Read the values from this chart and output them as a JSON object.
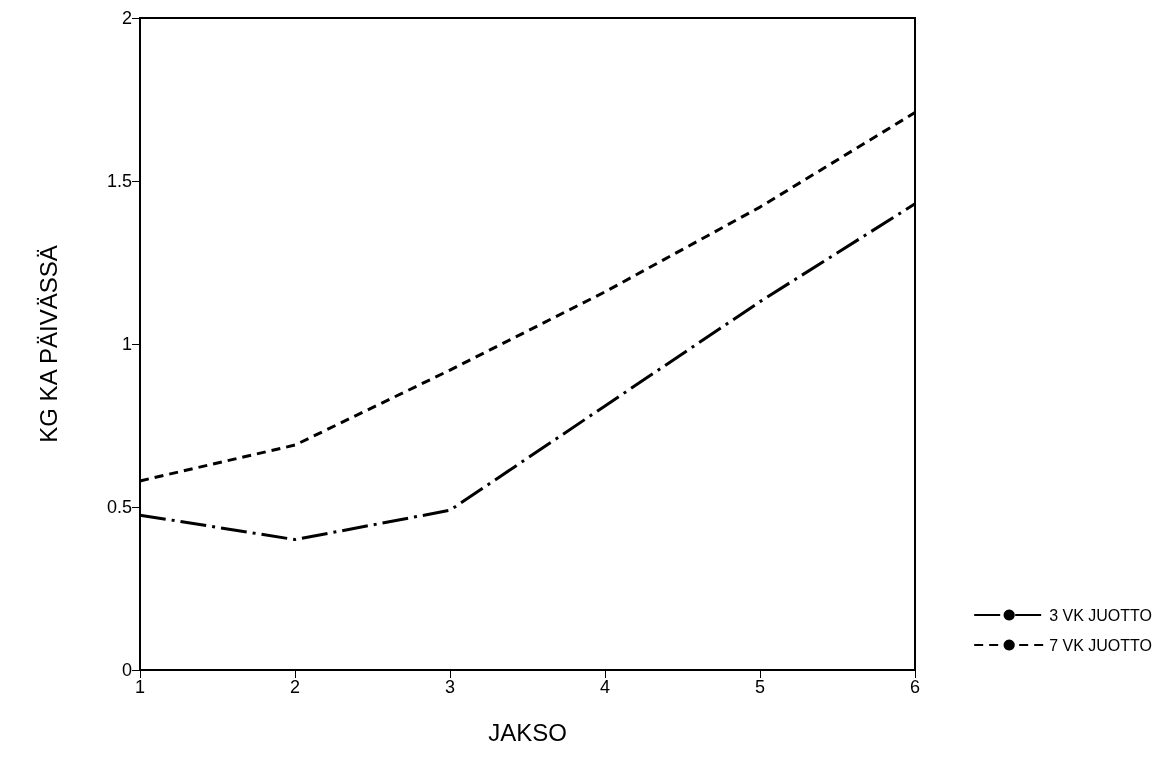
{
  "chart_data": {
    "type": "line",
    "xlabel": "JAKSO",
    "ylabel": "KG KA PÄIVÄSSÄ",
    "x": [
      1,
      2,
      3,
      4,
      5,
      6
    ],
    "series": [
      {
        "name": "3 VK JUOTTO",
        "color": "#000000",
        "line_style": "dashdot",
        "values": [
          0.475,
          0.4,
          0.49,
          0.81,
          1.13,
          1.43
        ]
      },
      {
        "name": "7 VK JUOTTO",
        "color": "#000000",
        "line_style": "dashed",
        "values": [
          0.58,
          0.69,
          0.92,
          1.16,
          1.42,
          1.71
        ]
      }
    ],
    "xlim": [
      1,
      6
    ],
    "xticks": [
      1,
      2,
      3,
      4,
      5,
      6
    ],
    "ylim": [
      0,
      2
    ],
    "yticks": [
      0,
      0.5,
      1,
      1.5,
      2
    ],
    "grid": false,
    "legend": "bottom right",
    "marker": "none"
  }
}
